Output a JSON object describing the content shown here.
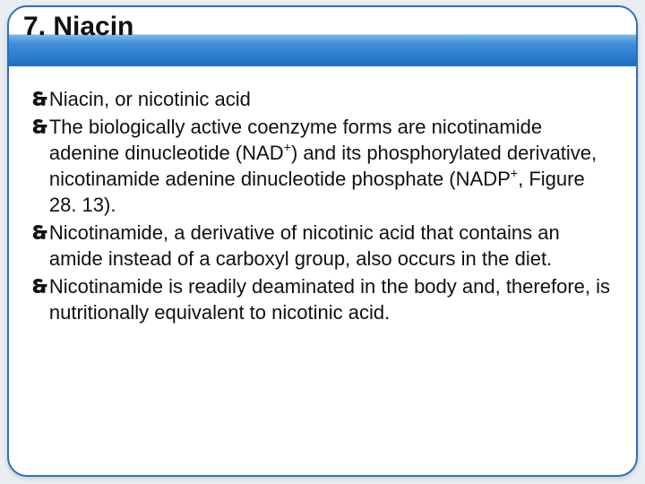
{
  "slide": {
    "title": "7. Niacin",
    "title_color": "#111111",
    "title_fontsize": 30,
    "bullet_marker": "🙳",
    "body_fontsize": 22,
    "body_color": "#111111",
    "band_gradient": [
      "#ffffff",
      "#7ab7e8",
      "#3f90d8",
      "#1e6fc4"
    ],
    "border_color": "#2a6fbf",
    "bullets": [
      "Niacin, or nicotinic acid",
      "The biologically active coenzyme forms are nicotinamide adenine dinucleotide (NAD+) and its phosphorylated derivative, nicotinamide adenine dinucleotide phosphate (NADP+, Figure 28. 13).",
      "Nicotinamide, a derivative of nicotinic acid that contains an amide instead of a carboxyl group, also occurs in the diet.",
      "Nicotinamide is readily deaminated in the body and, therefore, is nutritionally equivalent to nicotinic acid."
    ]
  }
}
